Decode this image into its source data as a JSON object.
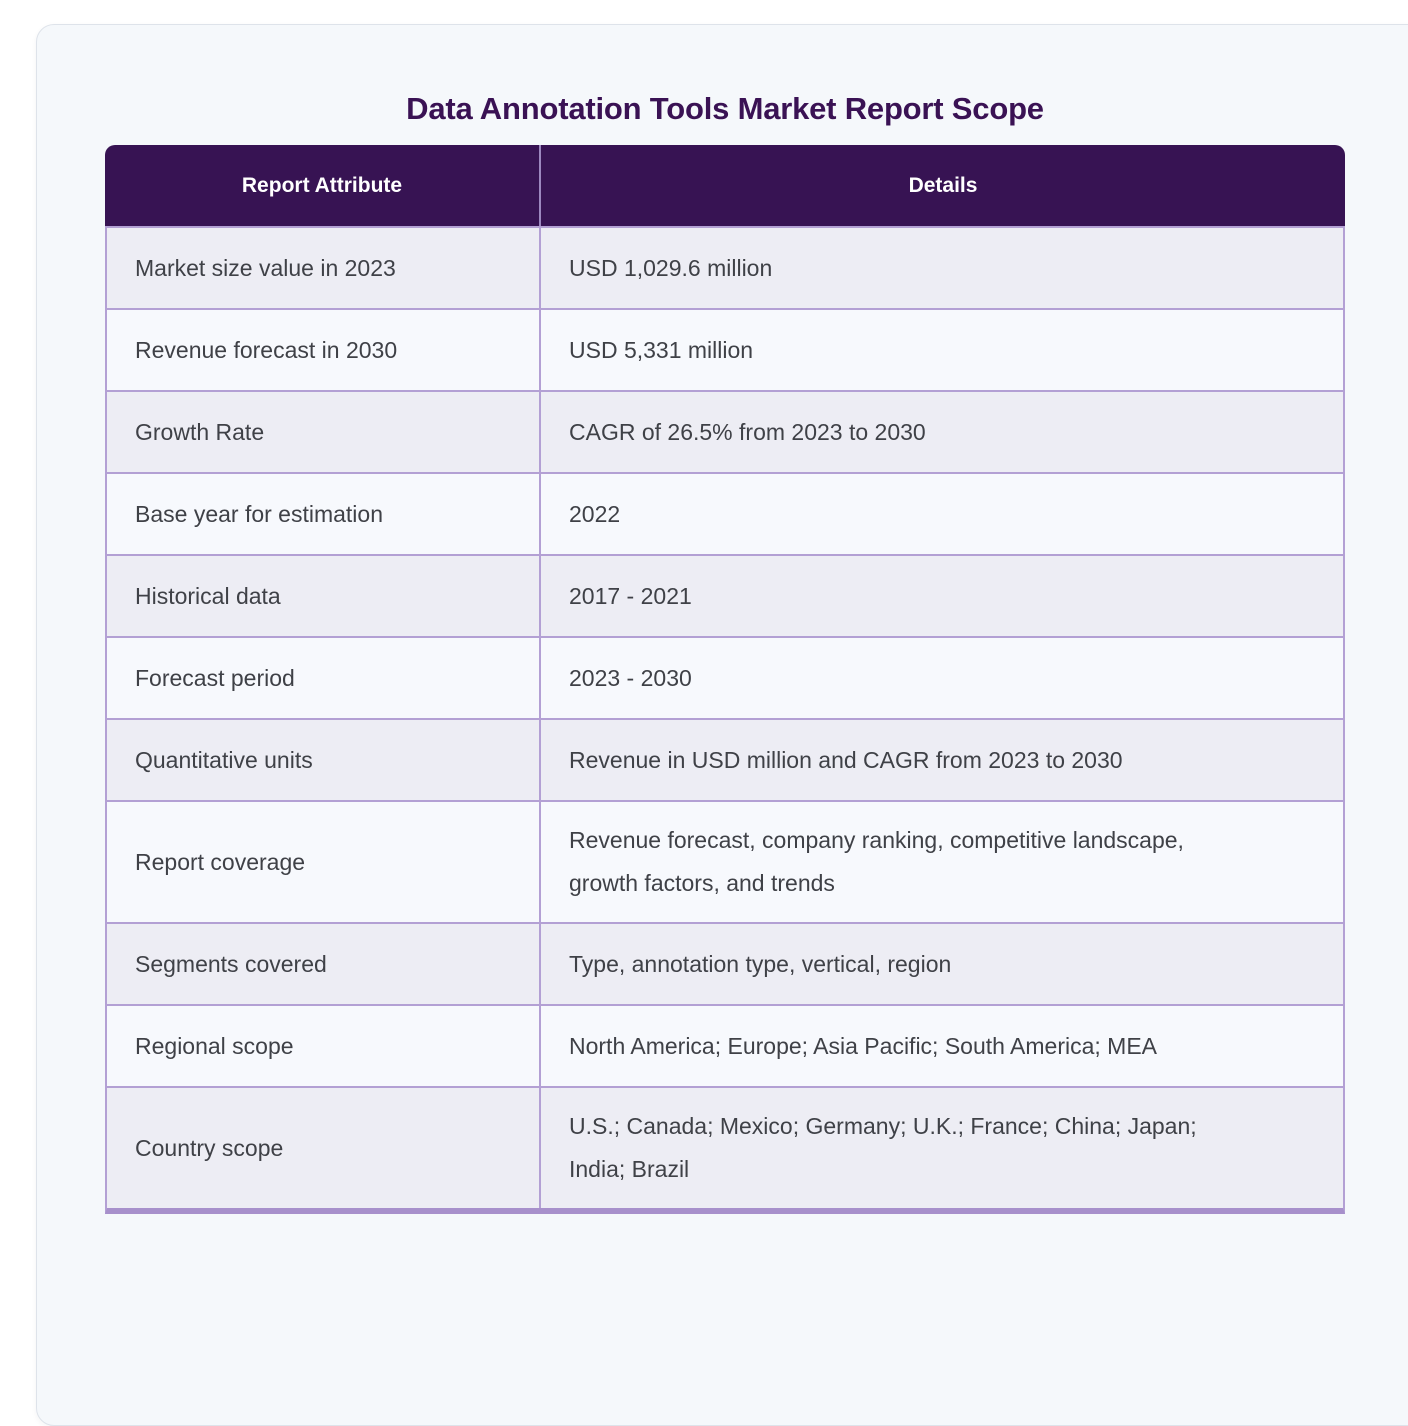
{
  "page": {
    "title": "Data Annotation Tools Market Report Scope"
  },
  "table": {
    "headers": [
      "Report Attribute",
      "Details"
    ],
    "rows": [
      {
        "attribute": "Market size value in 2023",
        "details": "USD 1,029.6 million"
      },
      {
        "attribute": "Revenue forecast in 2030",
        "details": "USD 5,331 million"
      },
      {
        "attribute": "Growth Rate",
        "details": "CAGR of 26.5% from 2023 to 2030"
      },
      {
        "attribute": "Base year for estimation",
        "details": "2022"
      },
      {
        "attribute": "Historical data",
        "details": "2017 - 2021"
      },
      {
        "attribute": "Forecast period",
        "details": "2023 - 2030"
      },
      {
        "attribute": "Quantitative units",
        "details": "Revenue in USD million and CAGR from 2023 to 2030"
      },
      {
        "attribute": "Report coverage",
        "details": "Revenue forecast, company ranking, competitive landscape, growth factors, and trends"
      },
      {
        "attribute": "Segments covered",
        "details": "Type, annotation type, vertical, region"
      },
      {
        "attribute": "Regional scope",
        "details": "North America; Europe; Asia Pacific; South America; MEA"
      },
      {
        "attribute": "Country scope",
        "details": "U.S.; Canada; Mexico; Germany; U.K.; France; China; Japan; India; Brazil"
      }
    ]
  },
  "colors": {
    "header_bg": "#371353",
    "header_text": "#ffffff",
    "title_text": "#3a1254",
    "row_border": "#b3a0d4",
    "row_odd_bg": "#ededf4",
    "row_even_bg": "#f7f9fd",
    "cell_text": "#3f4147",
    "card_bg": "#f5f8fb"
  }
}
